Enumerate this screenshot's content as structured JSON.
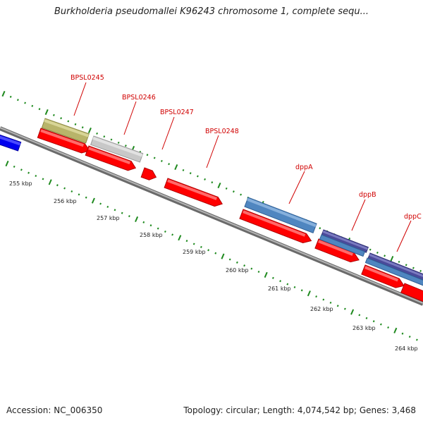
{
  "title": "Burkholderia pseudomallei K96243 chromosome 1, complete sequ...",
  "footer": {
    "accession": "Accession: NC_006350",
    "summary": "Topology: circular; Length: 4,074,542 bp; Genes: 3,468"
  },
  "colors": {
    "backbone": "#8a8a8a",
    "tick": "#1f8a1f",
    "cds": "#ff0000",
    "gene_label": "#d00000",
    "feature_olive": "#b8b46a",
    "feature_gray": "#c8c8c8",
    "feature_steelblue": "#4f86c0",
    "feature_purple": "#4a4a9a",
    "feature_blue": "#0000ee"
  },
  "kbp_labels": [
    "255 kbp",
    "256 kbp",
    "257 kbp",
    "258 kbp",
    "259 kbp",
    "260 kbp",
    "261 kbp",
    "262 kbp",
    "263 kbp",
    "264 kbp"
  ],
  "genes": [
    "BPSL0245",
    "BPSL0246",
    "BPSL0247",
    "BPSL0248",
    "dppA",
    "dppB",
    "dppC"
  ]
}
